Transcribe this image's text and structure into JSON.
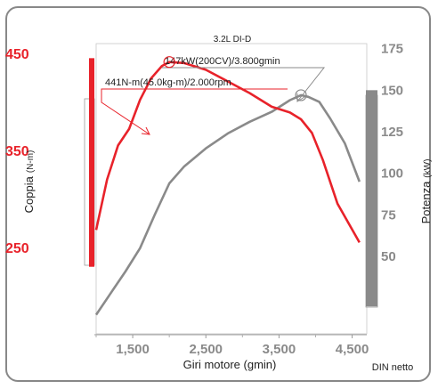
{
  "chart_data": {
    "type": "line",
    "title": "3.2L DI-D",
    "xlabel": "Giri motore (gmin)",
    "ylabel_left": "Coppia",
    "ylabel_left_unit": "(N-m)",
    "ylabel_right": "Potenza",
    "ylabel_right_unit": "(kW)",
    "note": "DIN netto",
    "xlim": [
      1000,
      4700
    ],
    "x_ticks": [
      1500,
      2500,
      3500,
      4500
    ],
    "x_tick_labels": [
      "1,500",
      "2,500",
      "3,500",
      "4,500"
    ],
    "y_left_ticks": [
      450,
      350,
      250
    ],
    "y_left_tick_labels": [
      "450",
      "350",
      "250"
    ],
    "ylim_left": [
      160,
      460
    ],
    "y_right_ticks": [
      175,
      150,
      125,
      100,
      75,
      50
    ],
    "y_right_tick_labels": [
      "175",
      "150",
      "125",
      "100",
      "75",
      "50"
    ],
    "ylim_right": [
      3,
      178
    ],
    "grid": false,
    "series": [
      {
        "name": "Coppia",
        "axis": "left",
        "color": "#e8222a",
        "x": [
          1000,
          1150,
          1300,
          1450,
          1600,
          1750,
          1900,
          2000,
          2200,
          2500,
          2800,
          3100,
          3400,
          3650,
          3800,
          3950,
          4100,
          4300,
          4600
        ],
        "y": [
          268,
          320,
          355,
          372,
          402,
          424,
          437,
          441,
          440,
          433,
          421,
          409,
          395,
          389,
          382,
          368,
          340,
          295,
          255
        ]
      },
      {
        "name": "Potenza",
        "axis": "right",
        "color": "#8a8a8a",
        "x": [
          1000,
          1200,
          1400,
          1600,
          1800,
          2000,
          2200,
          2500,
          2800,
          3100,
          3400,
          3650,
          3800,
          3900,
          4050,
          4200,
          4400,
          4600
        ],
        "y": [
          15,
          28,
          41,
          55,
          75,
          94,
          104,
          115,
          124,
          131,
          137,
          144,
          147,
          146,
          143,
          133,
          118,
          95
        ]
      }
    ],
    "annotations": [
      {
        "label": "441N-m(45.0kg-m)/2.000rpm",
        "series": "Coppia",
        "x": 2000,
        "y": 441
      },
      {
        "label": "147kW(200CV)/3.800gmin",
        "series": "Potenza",
        "x": 3800,
        "y": 147
      }
    ],
    "scale_bars": [
      {
        "axis": "left",
        "from": 230,
        "to": 445,
        "color": "#e8222a"
      },
      {
        "axis": "right",
        "from": 20,
        "to": 150,
        "color": "#8a8a8a"
      }
    ]
  }
}
